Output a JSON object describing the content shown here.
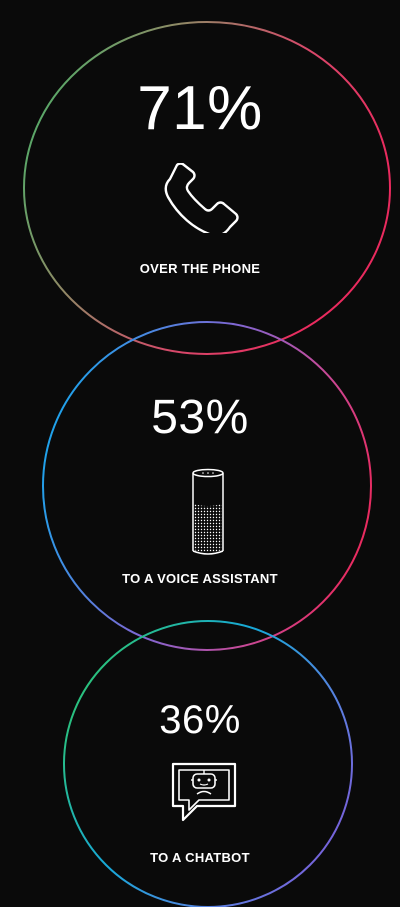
{
  "stats": [
    {
      "percent": "71%",
      "label": "OVER THE PHONE",
      "icon": "phone-icon"
    },
    {
      "percent": "53%",
      "label": "TO A VOICE ASSISTANT",
      "icon": "smart-speaker-icon"
    },
    {
      "percent": "36%",
      "label": "TO A CHATBOT",
      "icon": "chatbot-icon"
    }
  ],
  "colors": {
    "background": "#0a0a0a",
    "text": "#ffffff",
    "ring_gradient_1": [
      "#2fb36a",
      "#7a8f6a",
      "#e83a6b",
      "#e8245f"
    ],
    "ring_gradient_2": [
      "#1aa3e8",
      "#6b6fd6",
      "#c04fa0",
      "#e8245f"
    ],
    "ring_gradient_3": [
      "#2fc46f",
      "#1aa3e8",
      "#6b6fd6",
      "#7a5ad8"
    ]
  }
}
